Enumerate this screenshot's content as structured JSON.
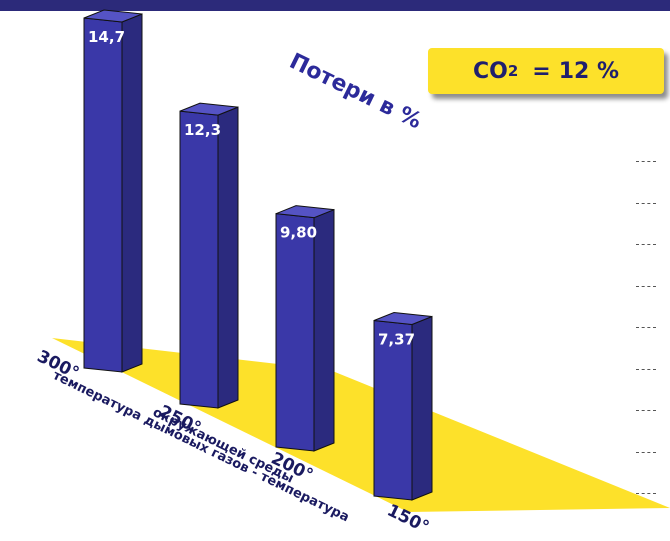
{
  "chart_data": {
    "type": "bar",
    "categories": [
      "300°",
      "250°",
      "200°",
      "150°"
    ],
    "values": [
      14.7,
      12.3,
      9.8,
      7.37
    ],
    "value_labels": [
      "14,7",
      "12,3",
      "9,80",
      "7,37"
    ],
    "title": "",
    "xlabel_line1": "температура дымовых газов - температура",
    "xlabel_line2": "окружающей среды",
    "ylabel": "Потери в %",
    "ylim": [
      0,
      14.7
    ],
    "grid": false,
    "colors": {
      "bar_front": "#3a38a8",
      "bar_side": "#2b2a7e",
      "floor": "#fde12a"
    }
  },
  "badge": {
    "co2": "CO",
    "subscript": "2",
    "equals": "=",
    "value": "12 %"
  }
}
